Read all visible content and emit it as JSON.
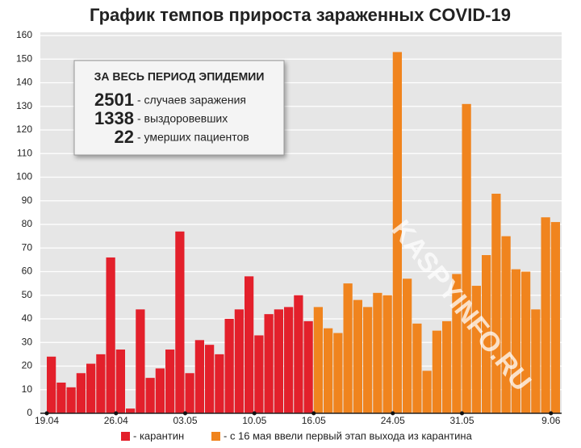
{
  "chart_data": {
    "type": "bar",
    "title": "График темпов прироста зараженных COVID-19",
    "categories": [
      "19.04",
      null,
      null,
      null,
      null,
      null,
      null,
      "26.04",
      null,
      null,
      null,
      null,
      null,
      null,
      "03.05",
      null,
      null,
      null,
      null,
      null,
      null,
      "10.05",
      null,
      null,
      null,
      null,
      null,
      "16.05",
      null,
      null,
      null,
      null,
      null,
      null,
      null,
      "24.05",
      null,
      null,
      null,
      null,
      null,
      null,
      "31.05",
      null,
      null,
      null,
      null,
      null,
      null,
      null,
      null,
      "9.06"
    ],
    "series": [
      {
        "name": "- карантин",
        "color": "#e3202b",
        "values": [
          24,
          13,
          11,
          17,
          21,
          25,
          66,
          27,
          2,
          44,
          15,
          19,
          27,
          77,
          17,
          31,
          29,
          25,
          40,
          44,
          58,
          33,
          42,
          44,
          45,
          50,
          39,
          null,
          null,
          null,
          null,
          null,
          null,
          null,
          null,
          null,
          null,
          null,
          null,
          null,
          null,
          null,
          null,
          null,
          null,
          null,
          null,
          null,
          null,
          null,
          null,
          null
        ]
      },
      {
        "name": "- с 16 мая ввели первый этап выхода из карантина",
        "color": "#f0841e",
        "values": [
          null,
          null,
          null,
          null,
          null,
          null,
          null,
          null,
          null,
          null,
          null,
          null,
          null,
          null,
          null,
          null,
          null,
          null,
          null,
          null,
          null,
          null,
          null,
          null,
          null,
          null,
          null,
          45,
          36,
          34,
          55,
          48,
          45,
          51,
          50,
          153,
          57,
          38,
          18,
          35,
          39,
          59,
          131,
          54,
          67,
          93,
          75,
          61,
          60,
          44,
          83,
          81
        ]
      }
    ],
    "ylim": [
      0,
      160
    ],
    "yticks": [
      0,
      10,
      20,
      30,
      40,
      50,
      60,
      70,
      80,
      90,
      100,
      110,
      120,
      130,
      140,
      150,
      160
    ],
    "grid": true,
    "summary": {
      "title": "ЗА ВЕСЬ ПЕРИОД ЭПИДЕМИИ",
      "rows": [
        {
          "number": "2501",
          "text": "- случаев заражения"
        },
        {
          "number": "1338",
          "text": "- выздоровевших"
        },
        {
          "number": "22",
          "text": "- умерших пациентов"
        }
      ]
    },
    "watermark": "KASPYINFO.RU"
  }
}
